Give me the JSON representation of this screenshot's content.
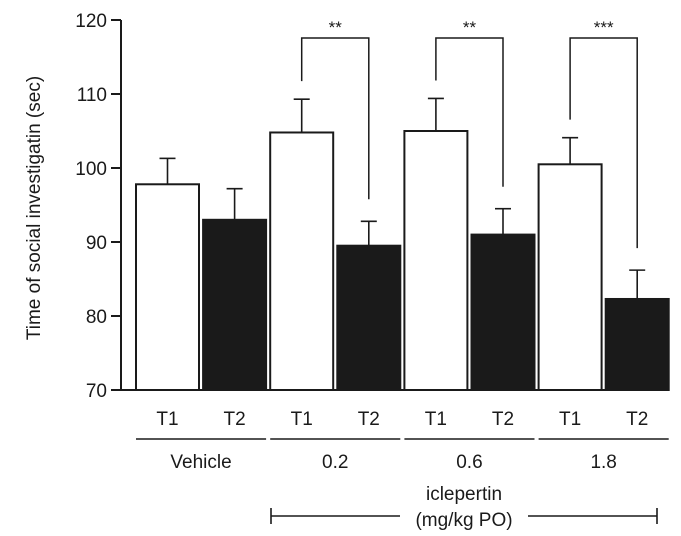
{
  "chart_data": {
    "type": "bar",
    "ylabel": "Time of social investigatin (sec)",
    "ylim": [
      70,
      120
    ],
    "yticks": [
      "70",
      "80",
      "90",
      "100",
      "110",
      "120"
    ],
    "categories": [
      "T1",
      "T2",
      "T1",
      "T2",
      "T1",
      "T2",
      "T1",
      "T2"
    ],
    "values": [
      97.8,
      93.0,
      104.8,
      89.5,
      105.0,
      91.0,
      100.5,
      82.3
    ],
    "errors": [
      3.5,
      4.2,
      4.5,
      3.3,
      4.4,
      3.5,
      3.6,
      3.9
    ],
    "fill": [
      "#ffffff",
      "#1a1a1a",
      "#ffffff",
      "#1a1a1a",
      "#ffffff",
      "#1a1a1a",
      "#ffffff",
      "#1a1a1a"
    ],
    "groups": [
      "Vehicle",
      "0.2",
      "0.6",
      "1.8"
    ],
    "significance": [
      {
        "from": 2,
        "to": 3,
        "label": "**"
      },
      {
        "from": 4,
        "to": 5,
        "label": "**"
      },
      {
        "from": 6,
        "to": 7,
        "label": "***"
      }
    ],
    "drug_label_line1": "iclepertin",
    "drug_label_line2": "(mg/kg PO)",
    "grid": false
  }
}
